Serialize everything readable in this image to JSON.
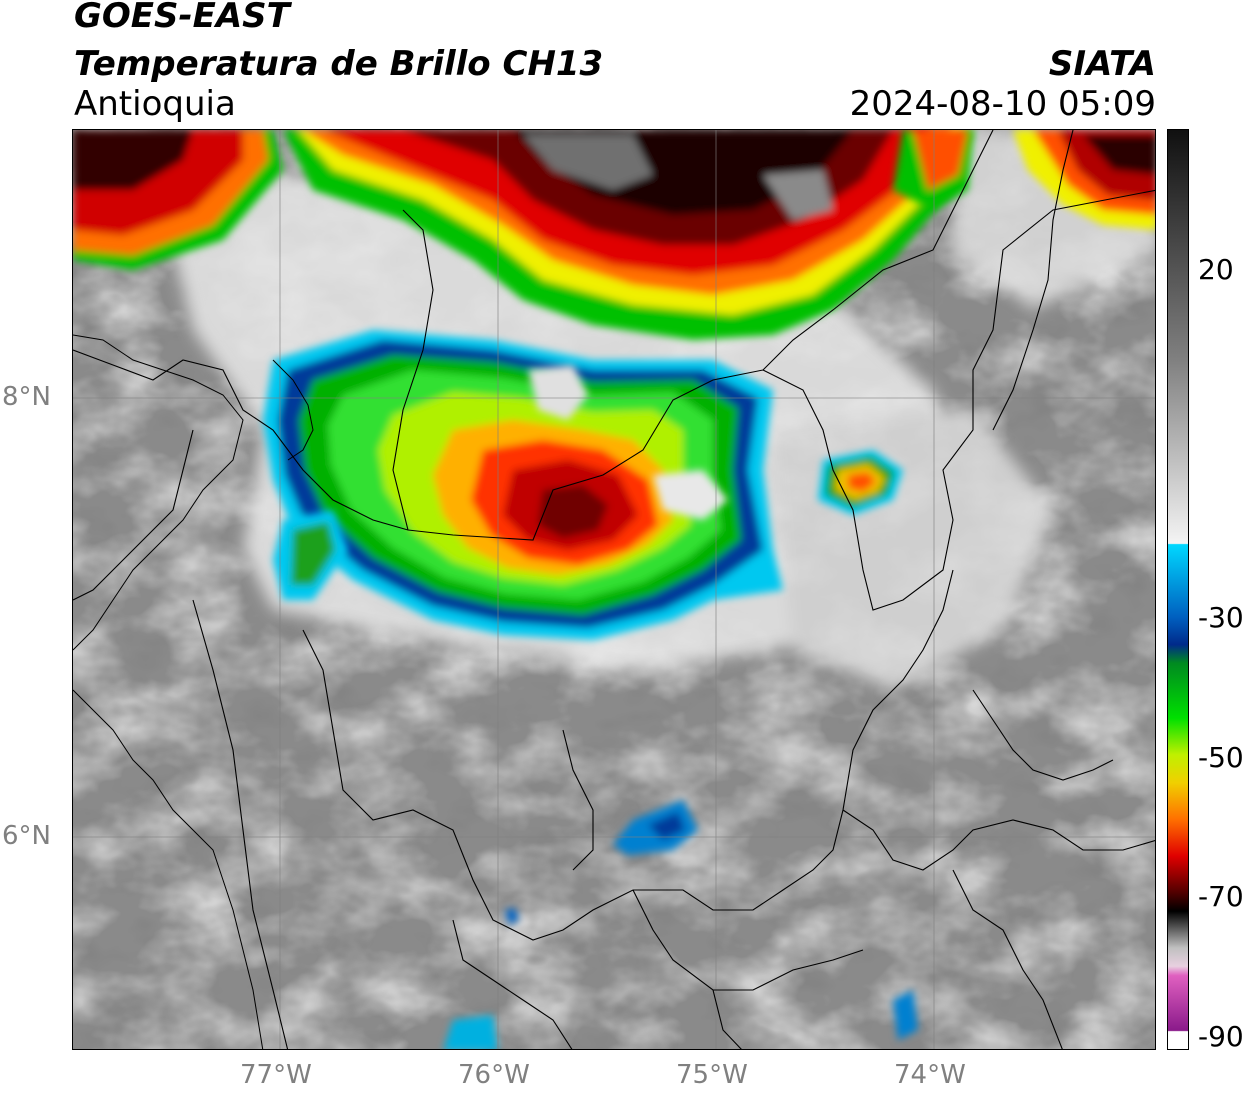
{
  "header": {
    "title_line1": "GOES-EAST",
    "title_line2": "Temperatura de Brillo CH13",
    "region": "Antioquia",
    "source": "SIATA",
    "timestamp": "2024-08-10 05:09"
  },
  "map": {
    "lon_labels": [
      "77°W",
      "76°W",
      "75°W",
      "74°W"
    ],
    "lat_labels": [
      "8°N",
      "6°N"
    ],
    "gridline_color": "#808080",
    "border_color": "#000000"
  },
  "colorbar": {
    "tick_labels": [
      "20",
      "-30",
      "-50",
      "-70",
      "-90"
    ],
    "colors": {
      "warm_top": "#101010",
      "warm_mid": "#909090",
      "warm_bottom": "#f4f4f4",
      "cyan": "#00d8ff",
      "blue": "#002a8a",
      "green": "#00d800",
      "yellow": "#f0f000",
      "orange": "#ff8000",
      "red": "#e00000",
      "dark_red": "#400000",
      "black": "#000000",
      "light_gray": "#d0d0d0",
      "magenta": "#e060c0",
      "purple": "#8a1a8a"
    }
  }
}
